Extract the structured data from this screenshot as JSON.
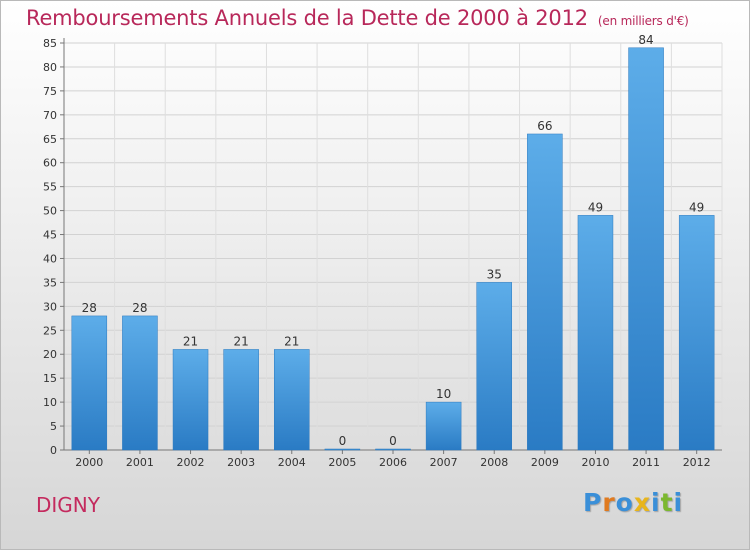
{
  "title": "Remboursements Annuels de la Dette de 2000 à 2012",
  "subtitle": "(en milliers d'€)",
  "place": "DIGNY",
  "logo": {
    "text": "Proxiti",
    "letters": [
      {
        "char": "P",
        "color": "#3a8fd8"
      },
      {
        "char": "r",
        "color": "#e07a1f"
      },
      {
        "char": "o",
        "color": "#3a8fd8"
      },
      {
        "char": "x",
        "color": "#e8b51c"
      },
      {
        "char": "i",
        "color": "#3a8fd8"
      },
      {
        "char": "t",
        "color": "#7cb82f"
      },
      {
        "char": "i",
        "color": "#3a8fd8"
      }
    ]
  },
  "colors": {
    "bar_top": "#5dade9",
    "bar_bottom": "#2a7bc4",
    "title": "#b8285a"
  },
  "chart_data": {
    "type": "bar",
    "categories": [
      "2000",
      "2001",
      "2002",
      "2003",
      "2004",
      "2005",
      "2006",
      "2007",
      "2008",
      "2009",
      "2010",
      "2011",
      "2012"
    ],
    "values": [
      28,
      28,
      21,
      21,
      21,
      0,
      0,
      10,
      35,
      66,
      49,
      84,
      49
    ],
    "data_labels": [
      "28",
      "28",
      "21",
      "21",
      "21",
      "0",
      "0",
      "10",
      "35",
      "66",
      "49",
      "84",
      "49"
    ],
    "y_ticks": [
      0,
      5,
      10,
      15,
      20,
      25,
      30,
      35,
      40,
      45,
      50,
      55,
      60,
      65,
      70,
      75,
      80,
      85
    ],
    "ylim": [
      0,
      85
    ],
    "grid": true,
    "legend": "none"
  }
}
